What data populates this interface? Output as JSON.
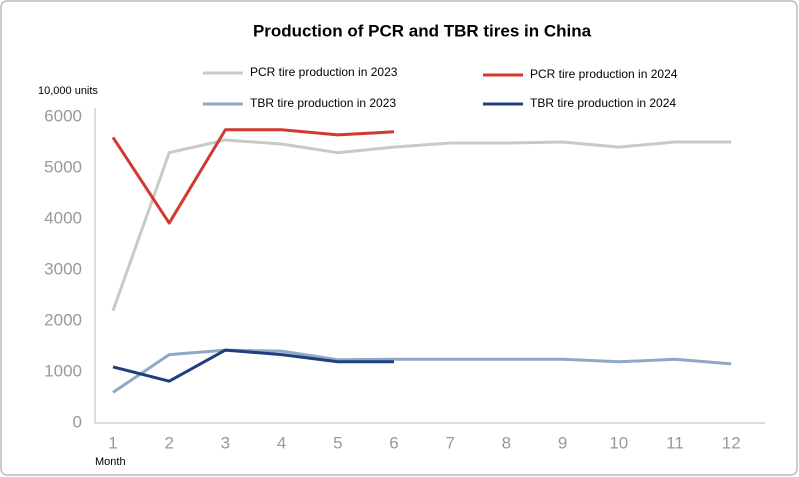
{
  "chart_data": {
    "type": "line",
    "title": "Production of PCR and TBR tires in China",
    "y_label": "10,000 units",
    "x_label": "Month",
    "categories": [
      "1",
      "2",
      "3",
      "4",
      "5",
      "6",
      "7",
      "8",
      "9",
      "10",
      "11",
      "12"
    ],
    "series": [
      {
        "name": "PCR tire production in 2023",
        "color": "#c9c9c9",
        "values": [
          2200,
          5300,
          5550,
          5470,
          5300,
          5410,
          5490,
          5490,
          5510,
          5410,
          5510,
          5510
        ]
      },
      {
        "name": "PCR tire production in 2024",
        "color": "#d03a30",
        "values": [
          5600,
          3920,
          5750,
          5750,
          5650,
          5710,
          null,
          null,
          null,
          null,
          null,
          null
        ]
      },
      {
        "name": "TBR tire production in 2023",
        "color": "#8fa8c8",
        "values": [
          600,
          1340,
          1430,
          1410,
          1240,
          1250,
          1250,
          1250,
          1250,
          1200,
          1250,
          1160
        ]
      },
      {
        "name": "TBR tire production in 2024",
        "color": "#1f3f7f",
        "values": [
          1100,
          820,
          1430,
          1340,
          1200,
          1200,
          null,
          null,
          null,
          null,
          null,
          null
        ]
      }
    ],
    "ylim": [
      0,
      6000
    ],
    "yticks": [
      0,
      1000,
      2000,
      3000,
      4000,
      5000,
      6000
    ],
    "grid": false
  }
}
